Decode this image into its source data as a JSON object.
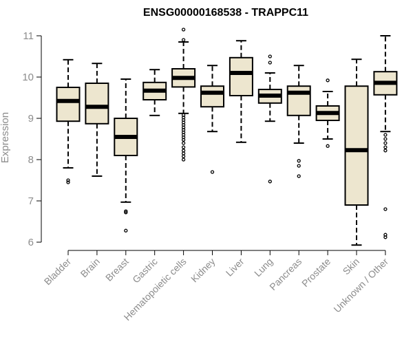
{
  "chart_data": {
    "type": "box",
    "title": "ENSG00000168538 - TRAPPC11",
    "xlabel": "",
    "ylabel": "Expression",
    "ylim": [
      6,
      11
    ],
    "yticks": [
      6,
      7,
      8,
      9,
      10,
      11
    ],
    "colors": {
      "box_fill": "#ede6cf",
      "stroke": "#000000",
      "axis_text": "#8c8c8c"
    },
    "categories": [
      "Bladder",
      "Brain",
      "Breast",
      "Gastric",
      "Hematopoietic cells",
      "Kidney",
      "Liver",
      "Lung",
      "Pancreas",
      "Prostate",
      "Skin",
      "Unknown / Other"
    ],
    "boxes": [
      {
        "category": "Bladder",
        "whisker_low": 7.8,
        "q1": 8.93,
        "median": 9.42,
        "q3": 9.75,
        "whisker_high": 10.42,
        "outliers": [
          7.5,
          7.45
        ]
      },
      {
        "category": "Brain",
        "whisker_low": 7.6,
        "q1": 8.87,
        "median": 9.28,
        "q3": 9.85,
        "whisker_high": 10.33,
        "outliers": []
      },
      {
        "category": "Breast",
        "whisker_low": 6.97,
        "q1": 8.1,
        "median": 8.55,
        "q3": 9.0,
        "whisker_high": 9.95,
        "outliers": [
          6.75,
          6.72,
          6.28
        ]
      },
      {
        "category": "Gastric",
        "whisker_low": 9.07,
        "q1": 9.45,
        "median": 9.67,
        "q3": 9.87,
        "whisker_high": 10.18,
        "outliers": []
      },
      {
        "category": "Hematopoietic cells",
        "whisker_low": 9.12,
        "q1": 9.76,
        "median": 9.98,
        "q3": 10.2,
        "whisker_high": 10.85,
        "outliers": [
          11.15,
          10.9,
          9.08,
          9.02,
          8.96,
          8.9,
          8.84,
          8.78,
          8.72,
          8.66,
          8.6,
          8.54,
          8.48,
          8.4,
          8.3,
          8.22,
          8.15,
          8.08,
          8.0
        ]
      },
      {
        "category": "Kidney",
        "whisker_low": 8.68,
        "q1": 9.28,
        "median": 9.62,
        "q3": 9.78,
        "whisker_high": 10.28,
        "outliers": [
          7.7
        ]
      },
      {
        "category": "Liver",
        "whisker_low": 8.42,
        "q1": 9.55,
        "median": 10.1,
        "q3": 10.47,
        "whisker_high": 10.88,
        "outliers": []
      },
      {
        "category": "Lung",
        "whisker_low": 8.93,
        "q1": 9.37,
        "median": 9.55,
        "q3": 9.7,
        "whisker_high": 10.1,
        "outliers": [
          10.5,
          10.35,
          7.47
        ]
      },
      {
        "category": "Pancreas",
        "whisker_low": 8.4,
        "q1": 9.07,
        "median": 9.62,
        "q3": 9.78,
        "whisker_high": 10.28,
        "outliers": [
          7.97,
          7.85,
          7.6
        ]
      },
      {
        "category": "Prostate",
        "whisker_low": 8.5,
        "q1": 8.95,
        "median": 9.13,
        "q3": 9.3,
        "whisker_high": 9.65,
        "outliers": [
          9.92,
          8.33
        ]
      },
      {
        "category": "Skin",
        "whisker_low": 5.93,
        "q1": 6.9,
        "median": 8.23,
        "q3": 9.78,
        "whisker_high": 10.43,
        "outliers": []
      },
      {
        "category": "Unknown / Other",
        "whisker_low": 8.68,
        "q1": 9.57,
        "median": 9.86,
        "q3": 10.13,
        "whisker_high": 11.0,
        "outliers": [
          8.6,
          8.5,
          8.4,
          8.3,
          8.22,
          6.8,
          6.18,
          6.12
        ]
      }
    ]
  }
}
